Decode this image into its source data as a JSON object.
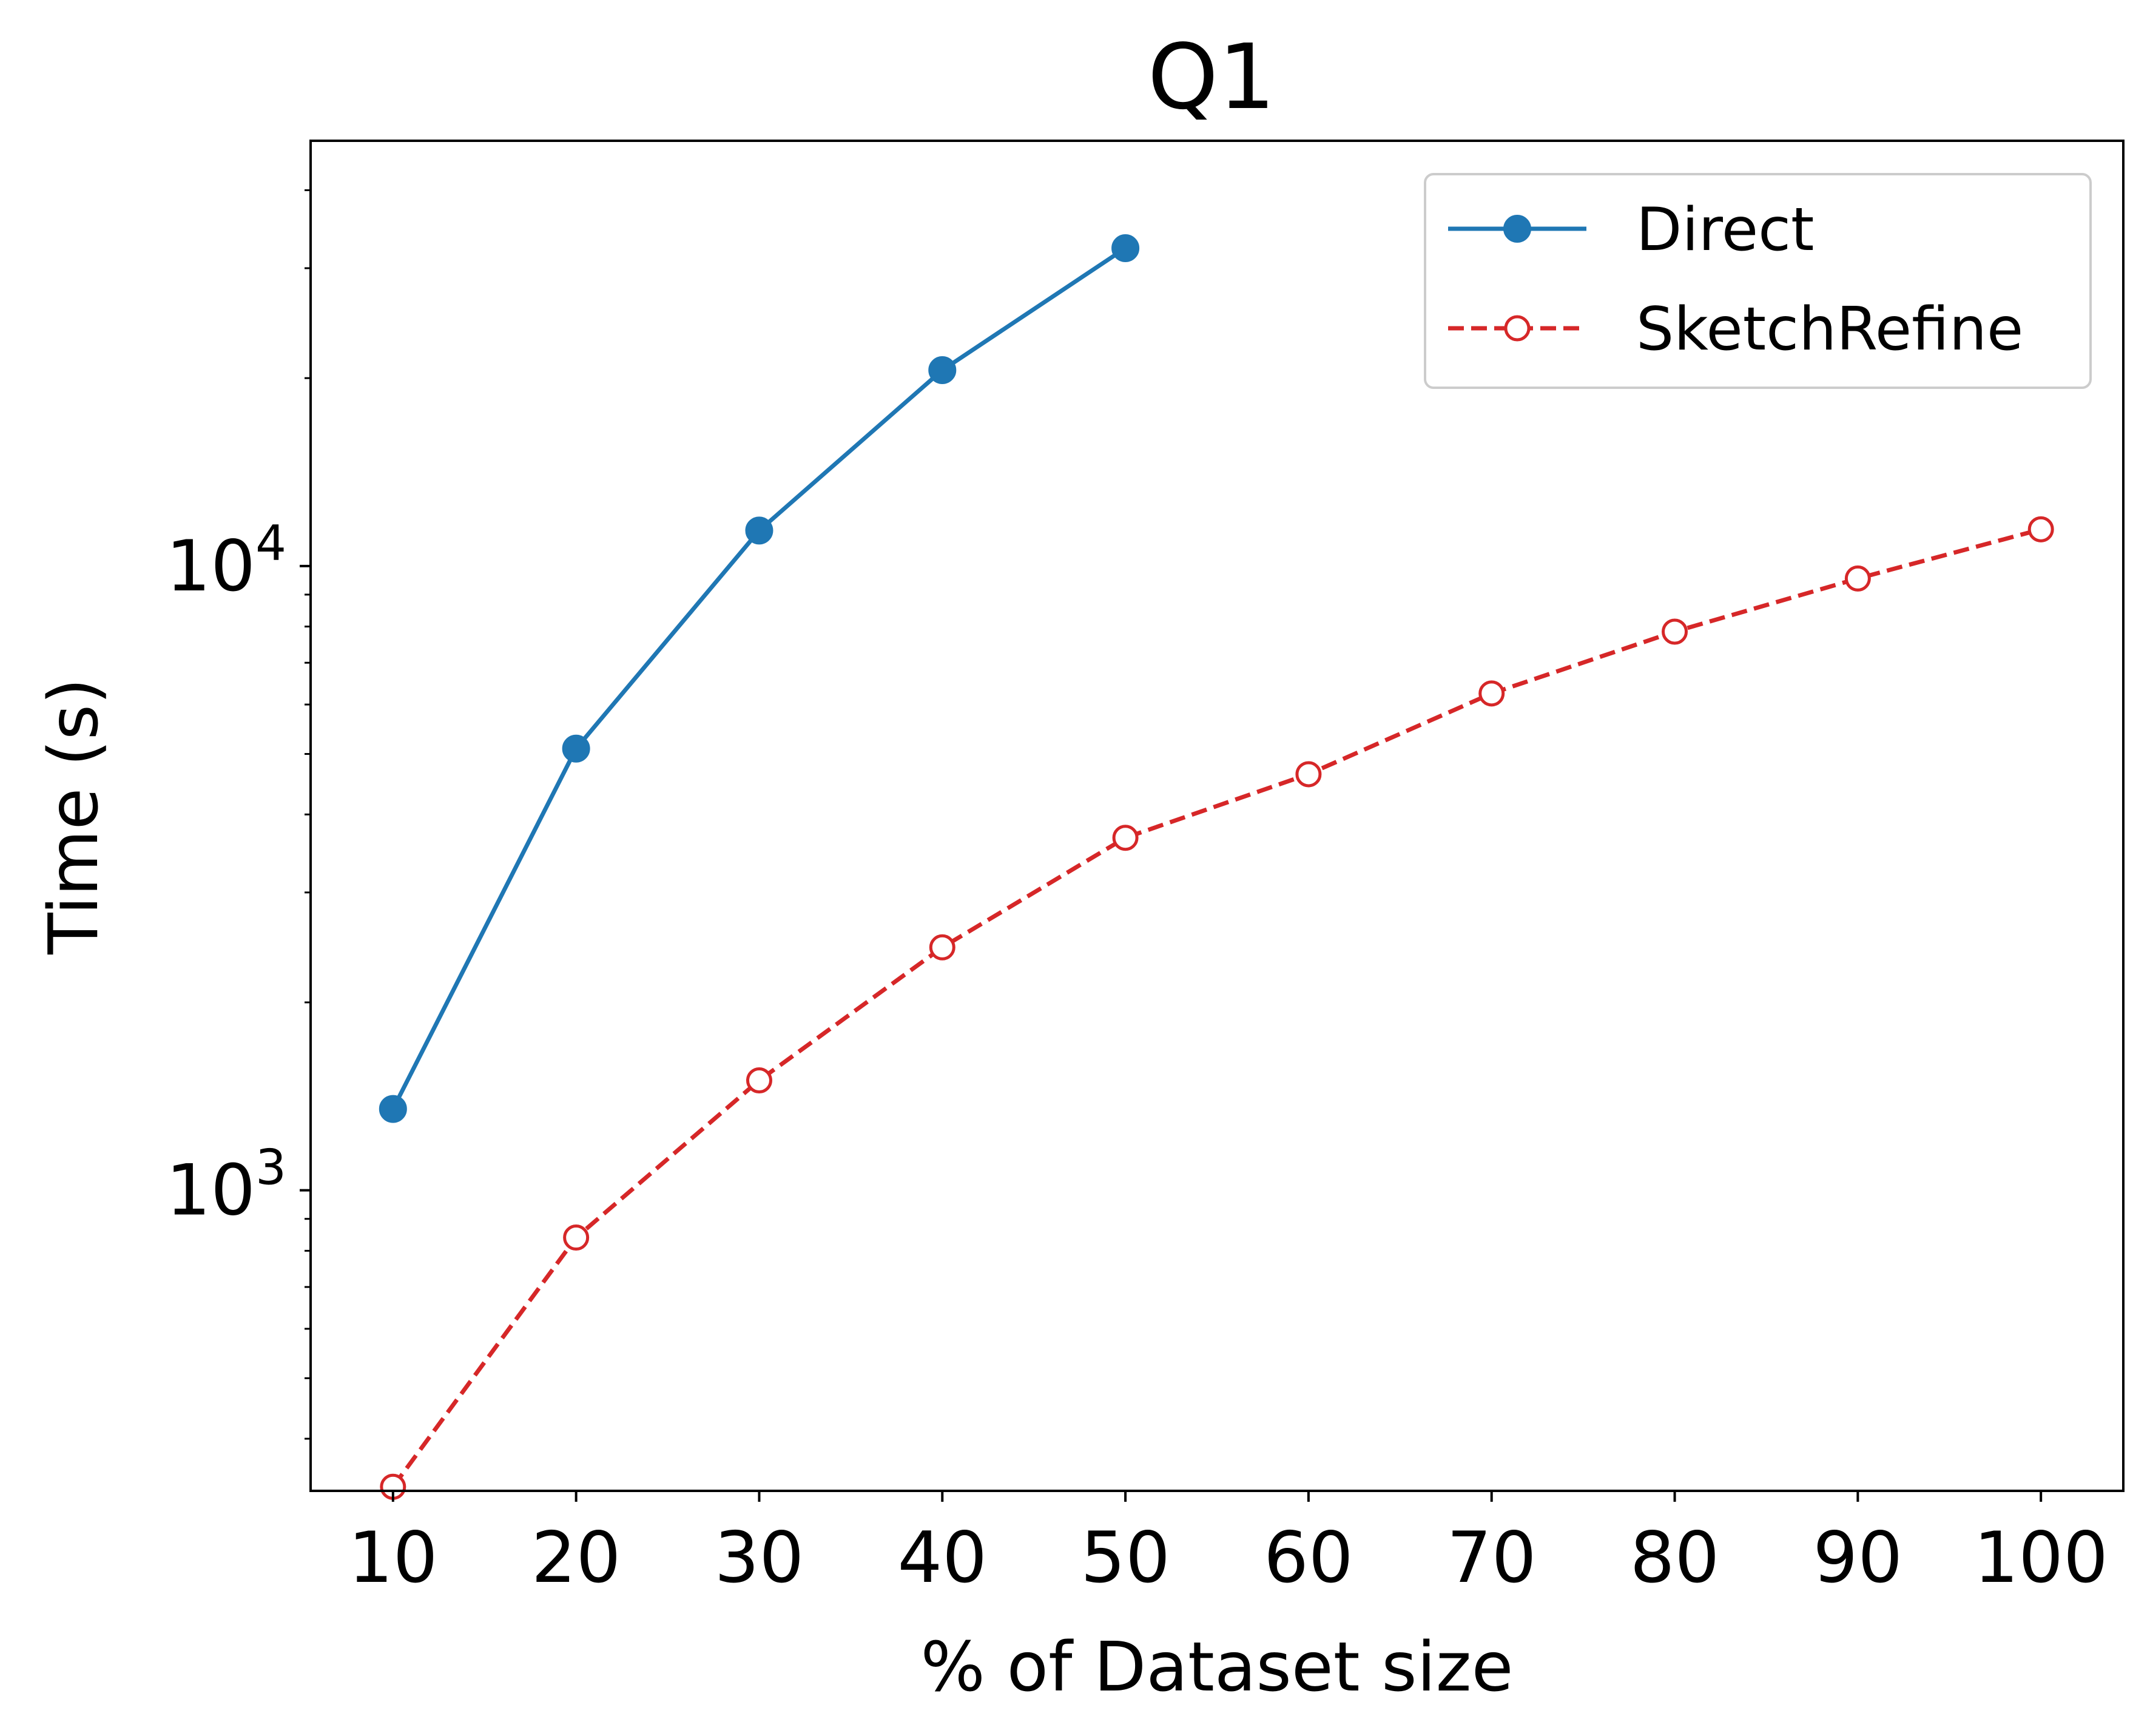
{
  "chart_data": {
    "type": "line",
    "title": "Q1",
    "xlabel": "% of Dataset size",
    "ylabel": "Time (s)",
    "x_ticks": [
      10,
      20,
      30,
      40,
      50,
      60,
      70,
      80,
      90,
      100
    ],
    "y_scale": "log",
    "y_ticks": [
      {
        "value": 1000,
        "base": "10",
        "exponent": "3"
      },
      {
        "value": 10000,
        "base": "10",
        "exponent": "4"
      }
    ],
    "xlim": [
      5.5,
      104.5
    ],
    "ylim": [
      330,
      48000
    ],
    "grid": false,
    "legend_position": "top-right",
    "series": [
      {
        "name": "Direct",
        "color": "#1f77b4",
        "line_style": "solid",
        "marker": "filled-circle",
        "x": [
          10,
          20,
          30,
          40,
          50
        ],
        "y": [
          1350,
          5100,
          11400,
          20600,
          32300
        ]
      },
      {
        "name": "SketchRefine",
        "color": "#d62728",
        "line_style": "dashed",
        "marker": "open-circle",
        "x": [
          10,
          20,
          30,
          40,
          50,
          60,
          70,
          80,
          90,
          100
        ],
        "y": [
          335,
          840,
          1500,
          2450,
          3670,
          4640,
          6250,
          7850,
          9550,
          11450
        ]
      }
    ]
  }
}
